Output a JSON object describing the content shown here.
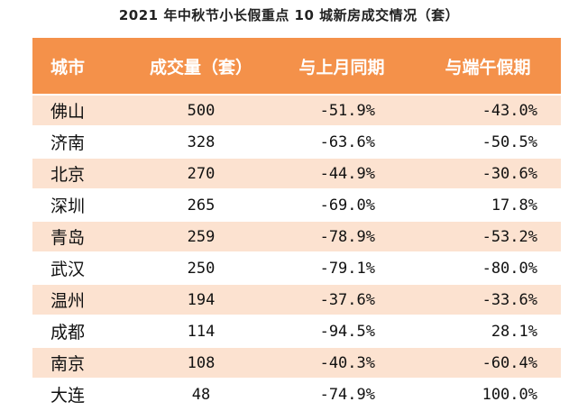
{
  "title": "2021 年中秋节小长假重点 10 城新房成交情况（套）",
  "header": {
    "city": "城市",
    "volume": "成交量（套）",
    "mom": "与上月同期",
    "dragon_boat": "与端午假期"
  },
  "rows": [
    {
      "city": "佛山",
      "volume": "500",
      "mom": "-51.9%",
      "dragon_boat": "-43.0%"
    },
    {
      "city": "济南",
      "volume": "328",
      "mom": "-63.6%",
      "dragon_boat": "-50.5%"
    },
    {
      "city": "北京",
      "volume": "270",
      "mom": "-44.9%",
      "dragon_boat": "-30.6%"
    },
    {
      "city": "深圳",
      "volume": "265",
      "mom": "-69.0%",
      "dragon_boat": "17.8%"
    },
    {
      "city": "青岛",
      "volume": "259",
      "mom": "-78.9%",
      "dragon_boat": "-53.2%"
    },
    {
      "city": "武汉",
      "volume": "250",
      "mom": "-79.1%",
      "dragon_boat": "-80.0%"
    },
    {
      "city": "温州",
      "volume": "194",
      "mom": "-37.6%",
      "dragon_boat": "-33.6%"
    },
    {
      "city": "成都",
      "volume": "114",
      "mom": "-94.5%",
      "dragon_boat": "28.1%"
    },
    {
      "city": "南京",
      "volume": "108",
      "mom": "-40.3%",
      "dragon_boat": "-60.4%"
    },
    {
      "city": "大连",
      "volume": "48",
      "mom": "-74.9%",
      "dragon_boat": "100.0%"
    }
  ],
  "colors": {
    "header_bg": "#f4914a",
    "stripe_bg": "#fce2d0"
  }
}
